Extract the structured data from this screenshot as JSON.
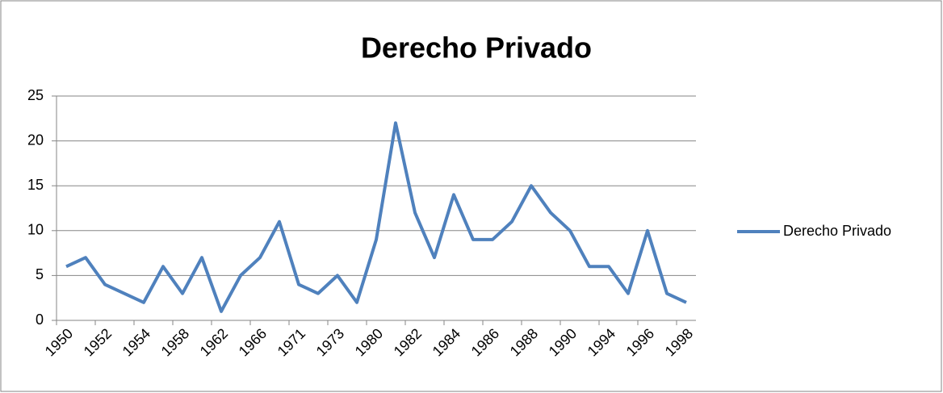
{
  "chart_data": {
    "type": "line",
    "title": "Derecho Privado",
    "categories": [
      "1950",
      null,
      "1952",
      null,
      "1954",
      null,
      "1958",
      null,
      "1962",
      null,
      "1966",
      null,
      "1971",
      null,
      "1973",
      null,
      "1980",
      null,
      "1982",
      null,
      "1984",
      null,
      "1986",
      null,
      "1988",
      null,
      "1990",
      null,
      "1994",
      null,
      "1996",
      null,
      "1998"
    ],
    "series": [
      {
        "name": "Derecho Privado",
        "color": "#4f81bd",
        "values": [
          6,
          7,
          4,
          3,
          2,
          6,
          3,
          7,
          1,
          5,
          7,
          11,
          4,
          3,
          5,
          2,
          9,
          22,
          12,
          7,
          14,
          9,
          9,
          11,
          15,
          12,
          10,
          6,
          6,
          3,
          10,
          3,
          2
        ]
      }
    ],
    "ylim": [
      0,
      25
    ],
    "yticks": [
      0,
      5,
      10,
      15,
      20,
      25
    ],
    "grid": true,
    "legend": "right"
  }
}
